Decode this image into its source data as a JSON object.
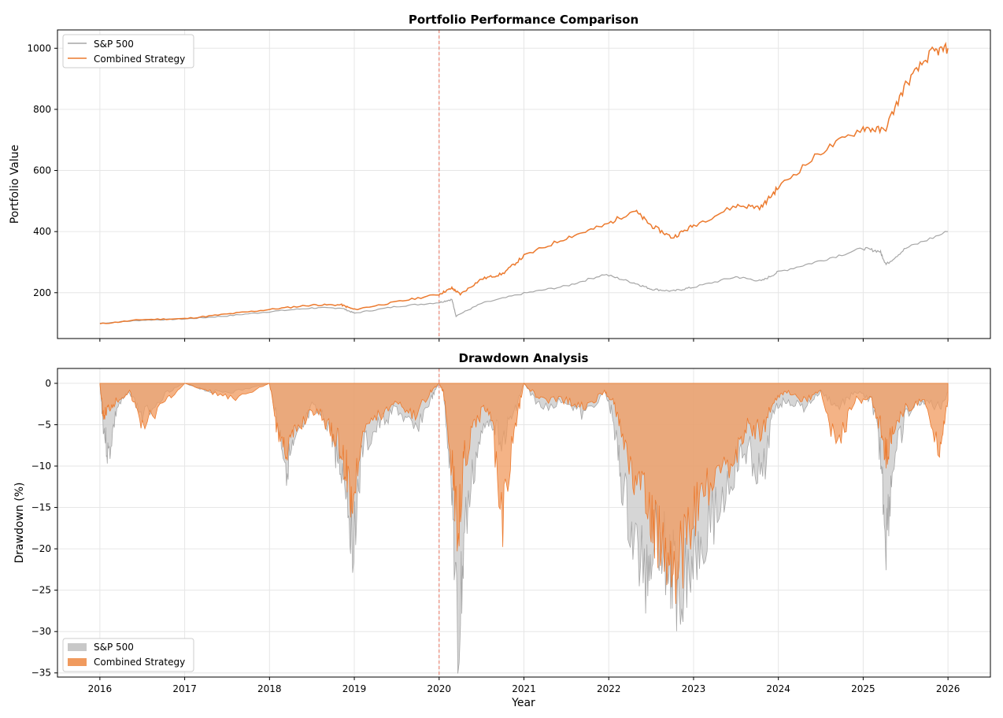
{
  "colors": {
    "sp500_line": "#a6a6a6",
    "strategy_line": "#ec7a2e",
    "sp500_fill": "#c8c8c8",
    "strategy_fill": "#f09a5e",
    "event_line": "#e8735f"
  },
  "chart_data": [
    {
      "type": "line",
      "title": "Portfolio Performance Comparison",
      "xlabel": "",
      "ylabel": "Portfolio Value",
      "xlim": [
        2015.5,
        2026.5
      ],
      "ylim": [
        50,
        1060
      ],
      "yticks": [
        200,
        400,
        600,
        800,
        1000
      ],
      "xticks": [
        2016,
        2017,
        2018,
        2019,
        2020,
        2021,
        2022,
        2023,
        2024,
        2025,
        2026
      ],
      "show_xtick_labels": false,
      "grid": true,
      "legend": "top-left",
      "vertical_marker_x": 2020.0,
      "series": [
        {
          "name": "S&P 500",
          "x": [
            2016.0,
            2016.5,
            2017.0,
            2017.5,
            2018.0,
            2018.5,
            2018.85,
            2019.0,
            2019.5,
            2020.0,
            2020.15,
            2020.2,
            2020.5,
            2021.0,
            2021.5,
            2021.95,
            2022.3,
            2022.5,
            2022.75,
            2023.0,
            2023.5,
            2023.8,
            2024.0,
            2024.5,
            2025.0,
            2025.2,
            2025.27,
            2025.5,
            2026.0
          ],
          "values": [
            100,
            110,
            114,
            124,
            138,
            150,
            150,
            133,
            155,
            168,
            178,
            124,
            165,
            198,
            222,
            260,
            232,
            212,
            205,
            218,
            252,
            238,
            268,
            305,
            345,
            335,
            292,
            345,
            400
          ]
        },
        {
          "name": "Combined Strategy",
          "x": [
            2016.0,
            2016.5,
            2017.0,
            2017.5,
            2018.0,
            2018.5,
            2018.85,
            2019.0,
            2019.5,
            2020.0,
            2020.15,
            2020.25,
            2020.5,
            2020.75,
            2021.0,
            2021.5,
            2021.95,
            2022.3,
            2022.5,
            2022.75,
            2023.0,
            2023.5,
            2023.8,
            2024.0,
            2024.5,
            2025.0,
            2025.25,
            2025.5,
            2025.8,
            2026.0
          ],
          "values": [
            98,
            112,
            115,
            130,
            145,
            160,
            160,
            145,
            170,
            195,
            215,
            195,
            245,
            262,
            320,
            380,
            420,
            470,
            420,
            380,
            420,
            485,
            480,
            545,
            660,
            740,
            730,
            880,
            985,
            1000
          ]
        }
      ]
    },
    {
      "type": "area",
      "title": "Drawdown Analysis",
      "xlabel": "Year",
      "ylabel": "Drawdown (%)",
      "xlim": [
        2015.5,
        2026.5
      ],
      "ylim": [
        -35.5,
        1.8
      ],
      "yticks": [
        0,
        -5,
        -10,
        -15,
        -20,
        -25,
        -30,
        -35
      ],
      "ytick_labels": [
        "0",
        "−5",
        "−10",
        "−15",
        "−20",
        "−25",
        "−30",
        "−35"
      ],
      "xticks": [
        2016,
        2017,
        2018,
        2019,
        2020,
        2021,
        2022,
        2023,
        2024,
        2025,
        2026
      ],
      "xtick_labels": [
        "2016",
        "2017",
        "2018",
        "2019",
        "2020",
        "2021",
        "2022",
        "2023",
        "2024",
        "2025",
        "2026"
      ],
      "grid": true,
      "legend": "bottom-left",
      "vertical_marker_x": 2020.0,
      "series": [
        {
          "name": "S&P 500",
          "x": [
            2016.0,
            2016.04,
            2016.1,
            2016.2,
            2016.35,
            2016.5,
            2016.8,
            2017.0,
            2017.3,
            2017.6,
            2018.0,
            2018.1,
            2018.2,
            2018.3,
            2018.5,
            2018.7,
            2018.8,
            2018.9,
            2018.98,
            2019.1,
            2019.3,
            2019.5,
            2019.7,
            2019.9,
            2020.0,
            2020.05,
            2020.15,
            2020.22,
            2020.3,
            2020.45,
            2020.6,
            2020.75,
            2020.9,
            2021.0,
            2021.2,
            2021.5,
            2021.7,
            2021.95,
            2022.05,
            2022.15,
            2022.3,
            2022.45,
            2022.55,
            2022.7,
            2022.8,
            2022.95,
            2023.1,
            2023.3,
            2023.5,
            2023.65,
            2023.8,
            2023.95,
            2024.1,
            2024.3,
            2024.5,
            2024.7,
            2024.9,
            2025.1,
            2025.2,
            2025.27,
            2025.35,
            2025.5,
            2025.7,
            2025.9,
            2026.0
          ],
          "values": [
            0,
            -5,
            -9,
            -3,
            -1,
            -4,
            -1,
            0,
            -1,
            -1,
            0,
            -5,
            -10,
            -8,
            -3,
            -5,
            -9,
            -12,
            -19,
            -8,
            -5,
            -3,
            -6,
            -2,
            0,
            -1,
            -12,
            -33.8,
            -18,
            -8,
            -4,
            -7,
            -3,
            0,
            -3,
            -2,
            -4,
            -1,
            -4,
            -12,
            -20,
            -23,
            -17,
            -22,
            -24.5,
            -22,
            -18,
            -15,
            -10,
            -8,
            -12,
            -3,
            -2,
            -3,
            -1,
            -3,
            -1,
            -2,
            -8,
            -18.8,
            -10,
            -4,
            -2,
            -3,
            -1
          ]
        },
        {
          "name": "Combined Strategy",
          "x": [
            2016.0,
            2016.04,
            2016.1,
            2016.2,
            2016.35,
            2016.5,
            2016.8,
            2017.0,
            2017.3,
            2017.6,
            2018.0,
            2018.1,
            2018.2,
            2018.3,
            2018.5,
            2018.7,
            2018.8,
            2018.9,
            2018.98,
            2019.1,
            2019.3,
            2019.5,
            2019.7,
            2019.9,
            2020.0,
            2020.05,
            2020.15,
            2020.22,
            2020.3,
            2020.45,
            2020.6,
            2020.75,
            2020.9,
            2021.0,
            2021.2,
            2021.5,
            2021.7,
            2021.95,
            2022.05,
            2022.15,
            2022.3,
            2022.45,
            2022.55,
            2022.7,
            2022.8,
            2022.95,
            2023.1,
            2023.3,
            2023.5,
            2023.65,
            2023.8,
            2023.95,
            2024.1,
            2024.3,
            2024.5,
            2024.7,
            2024.9,
            2025.1,
            2025.2,
            2025.27,
            2025.35,
            2025.5,
            2025.7,
            2025.9,
            2026.0
          ],
          "values": [
            0,
            -4,
            -3,
            -2,
            -1,
            -5,
            -2,
            0,
            -1,
            -2,
            0,
            -6,
            -8,
            -6,
            -3,
            -5,
            -7,
            -10,
            -14.5,
            -5,
            -4,
            -2,
            -4,
            -1,
            0,
            -1,
            -10,
            -17.5,
            -9,
            -4,
            -3,
            -16,
            -5,
            0,
            -2,
            -2,
            -3,
            -1,
            -2,
            -6,
            -12,
            -15,
            -18,
            -20,
            -22,
            -18,
            -14,
            -12,
            -8,
            -5,
            -6,
            -2,
            -1,
            -2,
            -1,
            -8,
            -2,
            -2,
            -5,
            -9,
            -6,
            -3,
            -2,
            -7.5,
            -2
          ]
        }
      ]
    }
  ]
}
